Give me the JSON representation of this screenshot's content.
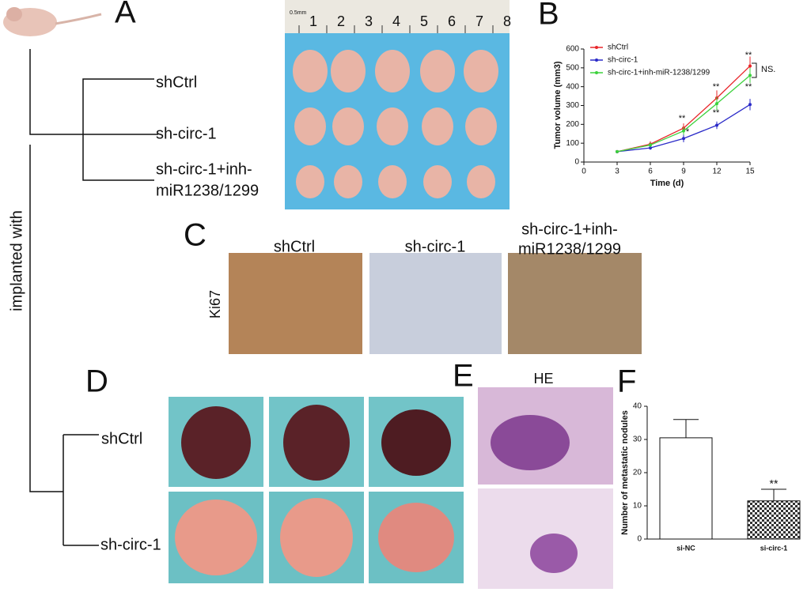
{
  "panel_labels": [
    "A",
    "B",
    "C",
    "D",
    "E",
    "F"
  ],
  "panel_a": {
    "groups": [
      "shCtrl",
      "sh-circ-1",
      [
        "sh-circ-1+inh-",
        "miR1238/1299"
      ]
    ],
    "side_label": "implanted with",
    "ruler": [
      "1",
      "2",
      "3",
      "4",
      "5",
      "6",
      "7",
      "8"
    ],
    "ruler_unit": "0.5mm"
  },
  "panel_c": {
    "stain": "Ki67",
    "columns": [
      "shCtrl",
      "sh-circ-1",
      [
        "sh-circ-1+inh-",
        "miR1238/1299"
      ]
    ]
  },
  "panel_d": {
    "rows": [
      "shCtrl",
      "sh-circ-1"
    ]
  },
  "panel_e": {
    "title": "HE"
  },
  "chart_data": [
    {
      "type": "line",
      "xlabel": "Time (d)",
      "ylabel": "Tumor volume (mm3)",
      "x": [
        3,
        6,
        9,
        12,
        15
      ],
      "xlim": [
        0,
        15
      ],
      "xticks": [
        0,
        3,
        6,
        9,
        12,
        15
      ],
      "ylim": [
        0,
        600
      ],
      "yticks": [
        0,
        100,
        200,
        300,
        400,
        500,
        600
      ],
      "series": [
        {
          "name": "shCtrl",
          "color": "#e8262a",
          "values": [
            55,
            95,
            180,
            340,
            510
          ],
          "errors": [
            5,
            15,
            25,
            40,
            50
          ]
        },
        {
          "name": "sh-circ-1",
          "color": "#2b2bc8",
          "values": [
            55,
            75,
            125,
            195,
            305
          ],
          "errors": [
            5,
            10,
            20,
            20,
            30
          ]
        },
        {
          "name": "sh-circ-1+inh-miR-1238/1299",
          "color": "#3cd23c",
          "values": [
            55,
            90,
            165,
            310,
            460
          ],
          "errors": [
            5,
            12,
            20,
            35,
            40
          ]
        }
      ],
      "annotations": [
        "**",
        "*",
        "**",
        "**",
        "**",
        "**",
        "NS."
      ]
    },
    {
      "type": "bar",
      "ylabel": "Number of metastatic nodules",
      "categories": [
        "si-NC",
        "si-circ-1"
      ],
      "values": [
        30.5,
        11.5
      ],
      "errors": [
        5.5,
        3.5
      ],
      "colors": [
        "#ffffff",
        "#333333"
      ],
      "ylim": [
        0,
        40
      ],
      "yticks": [
        0,
        10,
        20,
        30,
        40
      ],
      "annotations": [
        "**"
      ]
    }
  ]
}
